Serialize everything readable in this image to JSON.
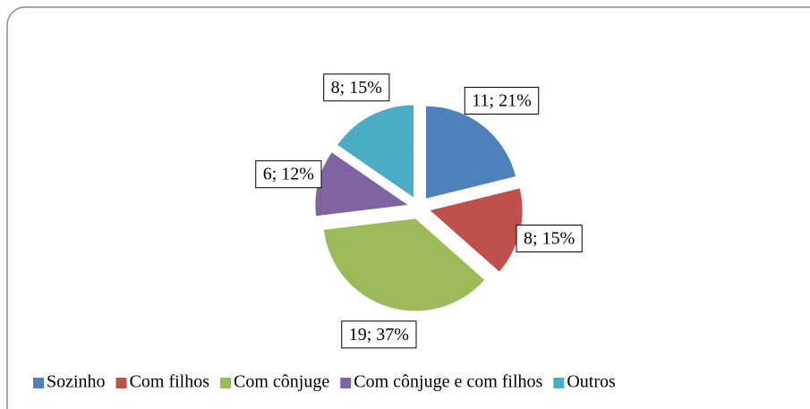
{
  "chart_data": {
    "type": "pie",
    "categories": [
      "Sozinho",
      "Com filhos",
      "Com cônjuge",
      "Com cônjuge e com filhos",
      "Outros"
    ],
    "values": [
      11,
      8,
      19,
      6,
      8
    ],
    "value_labels": [
      "11; 21%",
      "8; 15%",
      "19; 37%",
      "6; 12%",
      "8; 15%"
    ],
    "colors": [
      "#4f81bd",
      "#c0504d",
      "#9bbb59",
      "#8064a2",
      "#4bacc6"
    ],
    "legend": "bottom"
  }
}
